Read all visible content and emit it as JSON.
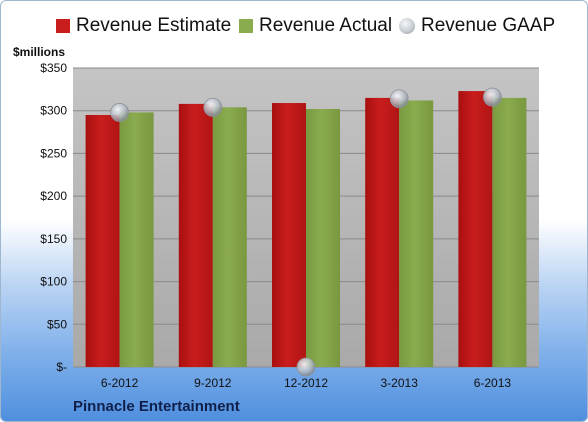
{
  "legend": {
    "estimate": "Revenue Estimate",
    "actual": "Revenue Actual",
    "gaap": "Revenue GAAP"
  },
  "unit_label": "$millions",
  "company": "Pinnacle Entertainment",
  "colors": {
    "estimate": "#c91d1d",
    "actual": "#8bab4f",
    "gaap": "#b8bfc7",
    "plot_background": "#c8c8c8"
  },
  "chart_data": {
    "type": "bar",
    "categories": [
      "6-2012",
      "9-2012",
      "12-2012",
      "3-2013",
      "6-2013"
    ],
    "series": [
      {
        "name": "Revenue Estimate",
        "type": "bar",
        "values": [
          295,
          308,
          309,
          315,
          323
        ]
      },
      {
        "name": "Revenue Actual",
        "type": "bar",
        "values": [
          298,
          304,
          302,
          312,
          315
        ]
      },
      {
        "name": "Revenue GAAP",
        "type": "scatter",
        "values": [
          298,
          304,
          0,
          314,
          316
        ]
      }
    ],
    "ylabel": "$millions",
    "ylim": [
      0,
      350
    ],
    "yticks": [
      0,
      50,
      100,
      150,
      200,
      250,
      300,
      350
    ],
    "ytick_labels": [
      "$-",
      "$50",
      "$100",
      "$150",
      "$200",
      "$250",
      "$300",
      "$350"
    ],
    "grid": true,
    "legend_position": "top"
  }
}
